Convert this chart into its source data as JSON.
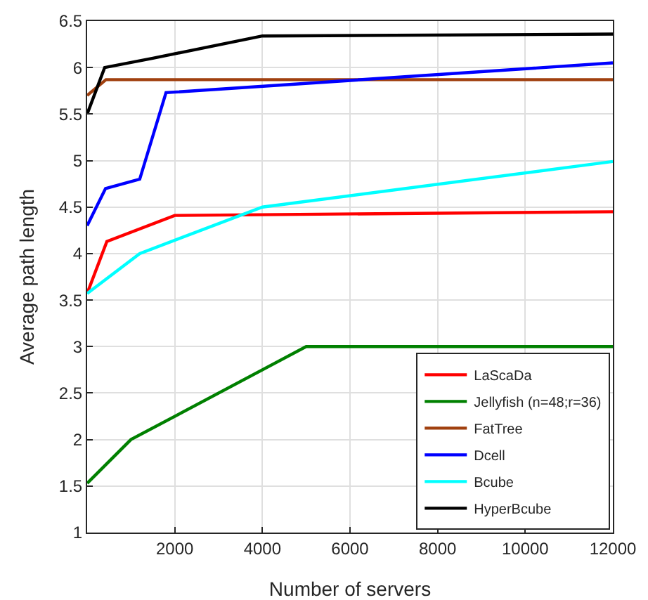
{
  "chart_data": {
    "type": "line",
    "xlabel": "Number of servers",
    "ylabel": "Average path length",
    "xlim": [
      0,
      12000
    ],
    "xticks": [
      2000,
      4000,
      6000,
      8000,
      10000,
      12000
    ],
    "ylim": [
      1,
      6.5
    ],
    "yticks": [
      1,
      1.5,
      2,
      2.5,
      3,
      3.5,
      4,
      4.5,
      5,
      5.5,
      6,
      6.5
    ],
    "grid": true,
    "legend": "bottom right",
    "marker": "none",
    "line_style": "solid",
    "series": [
      {
        "name": "LaScaDa",
        "color": "#ff0000",
        "x": [
          0,
          450,
          2000,
          12000
        ],
        "values": [
          3.57,
          4.13,
          4.41,
          4.45
        ]
      },
      {
        "name": "Jellyfish (n=48;r=36)",
        "color": "#008000",
        "x": [
          0,
          1000,
          5000,
          12000
        ],
        "values": [
          1.53,
          2.0,
          3.0,
          3.0
        ]
      },
      {
        "name": "FatTree",
        "color": "#a0400f",
        "x": [
          0,
          430,
          12000
        ],
        "values": [
          5.7,
          5.87,
          5.87
        ]
      },
      {
        "name": "Dcell",
        "color": "#0000ff",
        "x": [
          0,
          420,
          1200,
          1800,
          12000
        ],
        "values": [
          4.3,
          4.7,
          4.8,
          5.73,
          6.05
        ]
      },
      {
        "name": "Bcube",
        "color": "#00ffff",
        "x": [
          0,
          1200,
          4000,
          12000
        ],
        "values": [
          3.57,
          4.0,
          4.5,
          4.99
        ]
      },
      {
        "name": "HyperBcube",
        "color": "#000000",
        "x": [
          0,
          400,
          1500,
          4000,
          12000
        ],
        "values": [
          5.5,
          6.0,
          6.1,
          6.34,
          6.36
        ]
      }
    ]
  }
}
